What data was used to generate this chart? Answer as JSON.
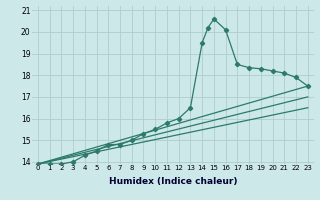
{
  "title": "",
  "xlabel": "Humidex (Indice chaleur)",
  "ylabel": "",
  "xlim": [
    -0.5,
    23.5
  ],
  "ylim": [
    13.9,
    21.2
  ],
  "yticks": [
    14,
    15,
    16,
    17,
    18,
    19,
    20,
    21
  ],
  "xtick_labels": [
    "0",
    "1",
    "2",
    "3",
    "4",
    "5",
    "6",
    "7",
    "8",
    "9",
    "10",
    "11",
    "12",
    "13",
    "14",
    "15",
    "16",
    "17",
    "18",
    "19",
    "20",
    "21",
    "22",
    "23"
  ],
  "background_color": "#cce8e8",
  "grid_color": "#b0cccc",
  "line_color": "#2d7a6a",
  "series": [
    [
      0,
      13.9
    ],
    [
      1,
      13.9
    ],
    [
      2,
      13.9
    ],
    [
      3,
      14.0
    ],
    [
      4,
      14.3
    ],
    [
      5,
      14.5
    ],
    [
      6,
      14.8
    ],
    [
      7,
      14.8
    ],
    [
      8,
      15.0
    ],
    [
      9,
      15.3
    ],
    [
      10,
      15.5
    ],
    [
      11,
      15.8
    ],
    [
      12,
      16.0
    ],
    [
      13,
      16.5
    ],
    [
      14,
      19.5
    ],
    [
      14.5,
      20.2
    ],
    [
      15,
      20.6
    ],
    [
      16,
      20.1
    ],
    [
      17,
      18.5
    ],
    [
      18,
      18.35
    ],
    [
      19,
      18.3
    ],
    [
      20,
      18.2
    ],
    [
      21,
      18.1
    ],
    [
      22,
      17.9
    ],
    [
      23,
      17.5
    ]
  ],
  "linear_lines": [
    [
      [
        0,
        13.9
      ],
      [
        23,
        17.5
      ]
    ],
    [
      [
        0,
        13.9
      ],
      [
        23,
        16.5
      ]
    ],
    [
      [
        0,
        13.9
      ],
      [
        23,
        17.0
      ]
    ]
  ],
  "marker": "D",
  "markersize": 2.2,
  "linewidth": 0.9,
  "xlabel_fontsize": 6.5,
  "xlabel_fontweight": "bold",
  "xlabel_color": "#000033",
  "xtick_fontsize": 5.0,
  "ytick_fontsize": 5.5
}
